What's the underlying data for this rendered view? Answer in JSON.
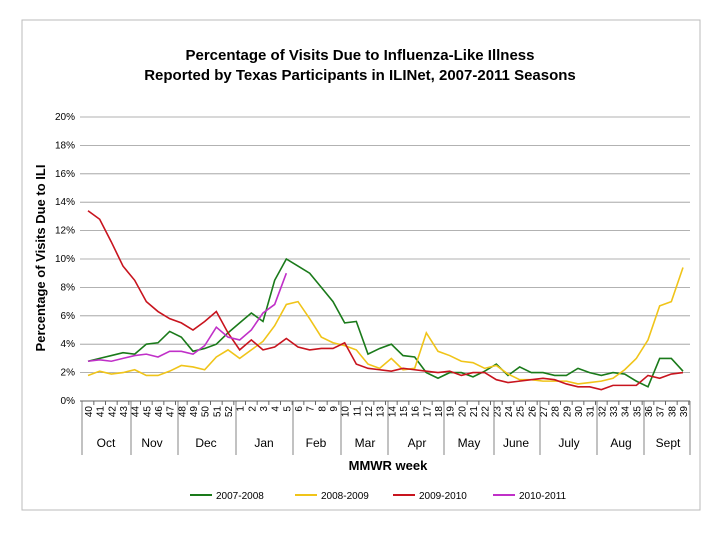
{
  "chart_data": {
    "type": "line",
    "title": [
      "Percentage of Visits Due to Influenza-Like Illness",
      "Reported by Texas Participants in ILINet, 2007-2011 Seasons"
    ],
    "xlabel": "MMWR week",
    "ylabel": "Percentage of Visits Due to ILI",
    "categories": [
      "40",
      "41",
      "42",
      "43",
      "44",
      "45",
      "46",
      "47",
      "48",
      "49",
      "50",
      "51",
      "52",
      "1",
      "2",
      "3",
      "4",
      "5",
      "6",
      "7",
      "8",
      "9",
      "10",
      "11",
      "12",
      "13",
      "14",
      "15",
      "16",
      "17",
      "18",
      "19",
      "20",
      "21",
      "22",
      "23",
      "24",
      "25",
      "26",
      "27",
      "28",
      "29",
      "30",
      "31",
      "32",
      "33",
      "34",
      "35",
      "36",
      "37",
      "38",
      "39"
    ],
    "month_labels": [
      "Oct",
      "Nov",
      "Dec",
      "Jan",
      "Feb",
      "Mar",
      "Apr",
      "May",
      "June",
      "July",
      "Aug",
      "Sept"
    ],
    "ylim": [
      0,
      20
    ],
    "yticks": [
      {
        "value": 0,
        "label": "0%"
      },
      {
        "value": 2,
        "label": "2%"
      },
      {
        "value": 4,
        "label": "4%"
      },
      {
        "value": 6,
        "label": "6%"
      },
      {
        "value": 8,
        "label": "8%"
      },
      {
        "value": 10,
        "label": "10%"
      },
      {
        "value": 12,
        "label": "12%"
      },
      {
        "value": 14,
        "label": "14%"
      },
      {
        "value": 16,
        "label": "16%"
      },
      {
        "value": 18,
        "label": "18%"
      },
      {
        "value": 20,
        "label": "20%"
      }
    ],
    "grid": true,
    "legend": "bottom",
    "series": [
      {
        "name": "2007-2008",
        "color": "#1a7a1a",
        "values": [
          2.8,
          3.0,
          3.2,
          3.4,
          3.3,
          4.0,
          4.1,
          4.9,
          4.5,
          3.5,
          3.7,
          4.0,
          4.8,
          5.5,
          6.2,
          5.6,
          8.5,
          10.0,
          9.5,
          9.0,
          8.0,
          7.0,
          5.5,
          5.6,
          3.3,
          3.7,
          4.0,
          3.2,
          3.1,
          2.0,
          1.6,
          2.0,
          2.0,
          1.7,
          2.1,
          2.6,
          1.8,
          2.4,
          2.0,
          2.0,
          1.8,
          1.8,
          2.3,
          2.0,
          1.8,
          2.0,
          1.9,
          1.4,
          1.0,
          3.0,
          3.0,
          2.1
        ]
      },
      {
        "name": "2008-2009",
        "color": "#f0c419",
        "values": [
          1.8,
          2.1,
          1.9,
          2.0,
          2.2,
          1.8,
          1.8,
          2.1,
          2.5,
          2.4,
          2.2,
          3.1,
          3.6,
          3.0,
          3.6,
          4.2,
          5.3,
          6.8,
          7.0,
          5.8,
          4.5,
          4.1,
          3.9,
          3.6,
          2.6,
          2.3,
          3.0,
          2.2,
          2.3,
          4.8,
          3.5,
          3.2,
          2.8,
          2.7,
          2.3,
          2.5,
          1.9,
          1.5,
          1.5,
          1.4,
          1.4,
          1.4,
          1.2,
          1.3,
          1.4,
          1.6,
          2.2,
          3.0,
          4.3,
          6.7,
          7.0,
          9.4
        ]
      },
      {
        "name": "2009-2010",
        "color": "#c8141e",
        "values": [
          13.4,
          12.8,
          11.2,
          9.5,
          8.5,
          7.0,
          6.3,
          5.8,
          5.5,
          5.0,
          5.6,
          6.3,
          4.8,
          3.6,
          4.3,
          3.6,
          3.8,
          4.4,
          3.8,
          3.6,
          3.7,
          3.7,
          4.1,
          2.6,
          2.3,
          2.2,
          2.1,
          2.3,
          2.2,
          2.1,
          2.0,
          2.1,
          1.8,
          2.0,
          2.0,
          1.5,
          1.3,
          1.4,
          1.5,
          1.6,
          1.5,
          1.2,
          1.0,
          1.0,
          0.8,
          1.1,
          1.1,
          1.1,
          1.8,
          1.6,
          1.9,
          2.0
        ]
      },
      {
        "name": "2010-2011",
        "color": "#c030c8",
        "values": [
          2.8,
          2.9,
          2.8,
          3.0,
          3.2,
          3.3,
          3.1,
          3.5,
          3.5,
          3.3,
          3.9,
          5.2,
          4.5,
          4.3,
          5.0,
          6.2,
          6.8,
          9.0,
          null,
          null,
          null,
          null,
          null,
          null,
          null,
          null,
          null,
          null,
          null,
          null,
          null,
          null,
          null,
          null,
          null,
          null,
          null,
          null,
          null,
          null,
          null,
          null,
          null,
          null,
          null,
          null,
          null,
          null,
          null,
          null,
          null,
          null
        ]
      }
    ]
  }
}
